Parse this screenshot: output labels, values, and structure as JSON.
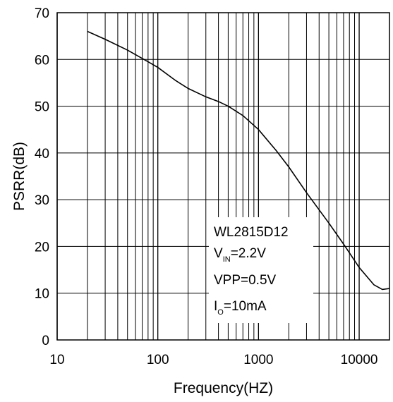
{
  "chart_data": {
    "type": "line",
    "xlabel": "Frequency(HZ)",
    "ylabel": "PSRR(dB)",
    "x_scale": "log",
    "xlim": [
      10,
      20000
    ],
    "ylim": [
      0,
      70
    ],
    "x_ticks": [
      10,
      100,
      1000,
      10000
    ],
    "x_tick_labels": [
      "10",
      "100",
      "1000",
      "10000"
    ],
    "y_ticks": [
      0,
      10,
      20,
      30,
      40,
      50,
      60,
      70
    ],
    "y_tick_labels": [
      "0",
      "10",
      "20",
      "30",
      "40",
      "50",
      "60",
      "70"
    ],
    "grid": true,
    "series": [
      {
        "x": [
          20,
          30,
          50,
          80,
          100,
          150,
          200,
          300,
          400,
          500,
          700,
          1000,
          1500,
          2000,
          3000,
          5000,
          7000,
          10000,
          14000,
          17000,
          20000
        ],
        "y": [
          66,
          64.3,
          62,
          59.5,
          58.3,
          55.5,
          53.8,
          52,
          51,
          50,
          48,
          45,
          40.5,
          37,
          31.5,
          25,
          20.5,
          15.5,
          11.8,
          10.8,
          11
        ]
      }
    ],
    "annotation": {
      "lines": [
        {
          "main": "WL2815D12"
        },
        {
          "main": "V",
          "sub": "IN",
          "rest": "=2.2V"
        },
        {
          "main": "VPP=0.5V"
        },
        {
          "main": "I",
          "sub": "O",
          "rest": "=10mA"
        }
      ]
    }
  },
  "style": {
    "line_color": "#000000",
    "grid_color": "#000000",
    "annotation_background": "#ffffff"
  }
}
